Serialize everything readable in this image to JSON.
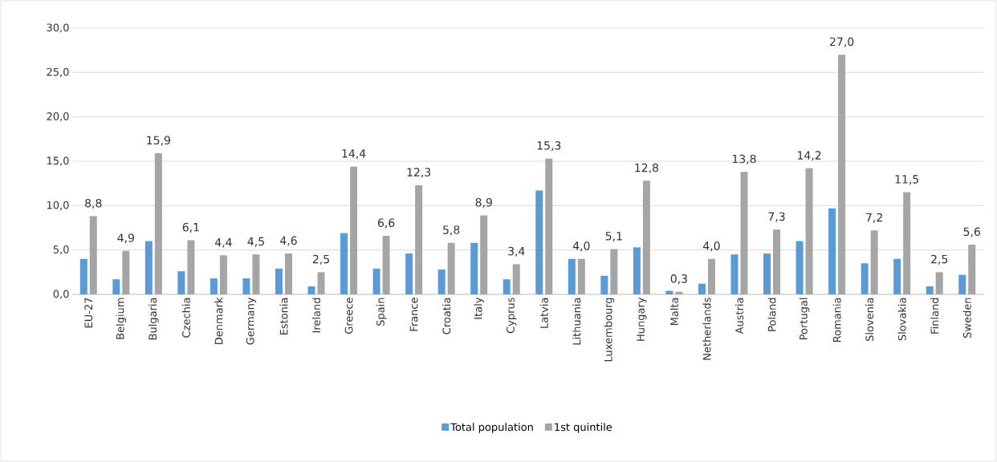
{
  "chart_data": {
    "type": "bar",
    "categories": [
      "EU-27",
      "Belgium",
      "Bulgaria",
      "Czechia",
      "Denmark",
      "Germany",
      "Estonia",
      "Ireland",
      "Greece",
      "Spain",
      "France",
      "Croatia",
      "Italy",
      "Cyprus",
      "Latvia",
      "Lithuania",
      "Luxembourg",
      "Hungary",
      "Malta",
      "Netherlands",
      "Austria",
      "Poland",
      "Portugal",
      "Romania",
      "Slovenia",
      "Slovakia",
      "Finland",
      "Sweden"
    ],
    "series": [
      {
        "name": "Total population",
        "color": "#5b9bd5",
        "values": [
          4.0,
          1.7,
          6.0,
          2.6,
          1.8,
          1.8,
          2.9,
          0.9,
          6.9,
          2.9,
          4.6,
          2.8,
          5.8,
          1.7,
          11.7,
          4.0,
          2.1,
          5.3,
          0.4,
          1.2,
          4.5,
          4.6,
          6.0,
          9.7,
          3.5,
          4.0,
          0.9,
          2.2
        ]
      },
      {
        "name": "1st quintile",
        "color": "#a5a5a5",
        "values": [
          8.8,
          4.9,
          15.9,
          6.1,
          4.4,
          4.5,
          4.6,
          2.5,
          14.4,
          6.6,
          12.3,
          5.8,
          8.9,
          3.4,
          15.3,
          4.0,
          5.1,
          12.8,
          0.3,
          4.0,
          13.8,
          7.3,
          14.2,
          27.0,
          7.2,
          11.5,
          2.5,
          5.6
        ],
        "value_labels": [
          "8,8",
          "4,9",
          "15,9",
          "6,1",
          "4,4",
          "4,5",
          "4,6",
          "2,5",
          "14,4",
          "6,6",
          "12,3",
          "5,8",
          "8,9",
          "3,4",
          "15,3",
          "4,0",
          "5,1",
          "12,8",
          "0,3",
          "4,0",
          "13,8",
          "7,3",
          "14,2",
          "27,0",
          "7,2",
          "11,5",
          "2,5",
          "5,6"
        ]
      }
    ],
    "ylim": [
      0,
      30
    ],
    "yticks": [
      {
        "value": 0,
        "label": "0,0"
      },
      {
        "value": 5,
        "label": "5,0"
      },
      {
        "value": 10,
        "label": "10,0"
      },
      {
        "value": 15,
        "label": "15,0"
      },
      {
        "value": 20,
        "label": "20,0"
      },
      {
        "value": 25,
        "label": "25,0"
      },
      {
        "value": 30,
        "label": "30,0"
      }
    ],
    "grid": "y",
    "legend": "bottom"
  }
}
